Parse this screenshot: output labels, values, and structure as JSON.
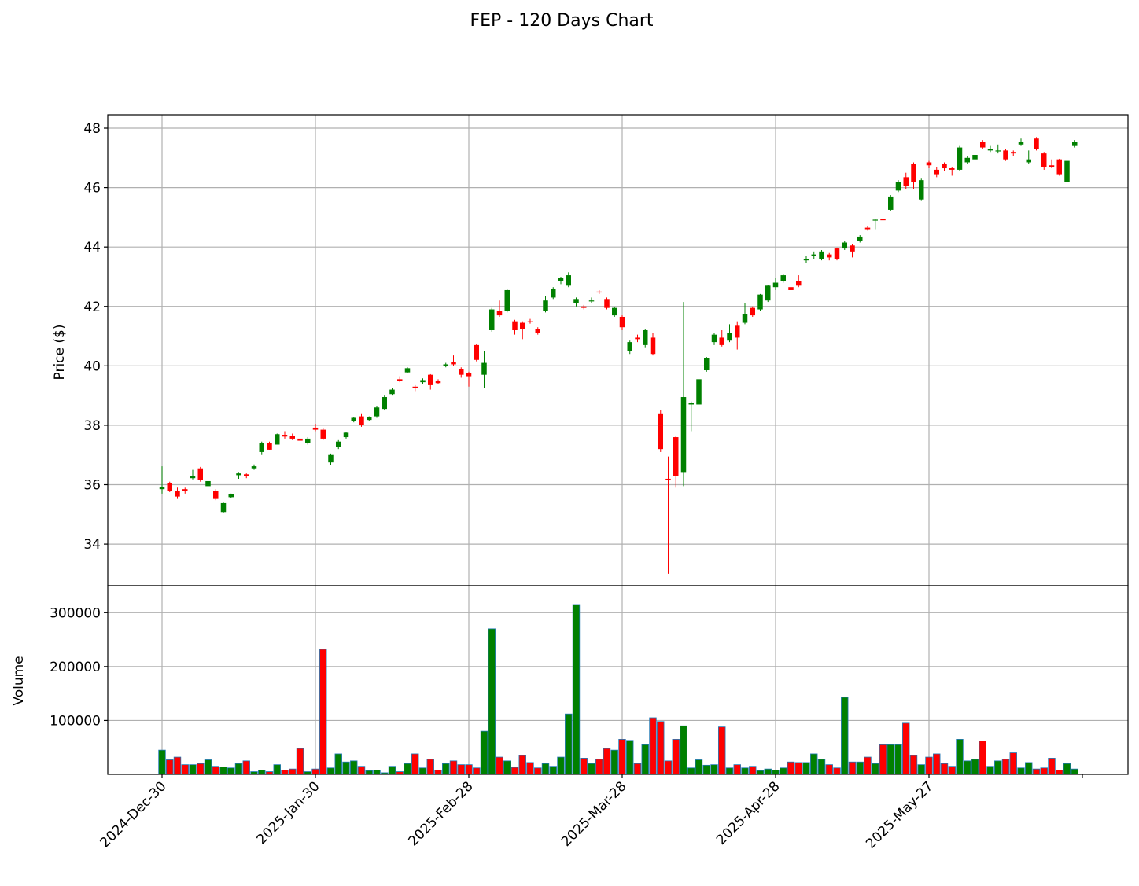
{
  "chart_data": {
    "type": "candlestick",
    "title": "FEP - 120 Days Chart",
    "price_panel": {
      "ylabel": "Price ($)",
      "ylim": [
        32.6,
        48.45
      ],
      "yticks": [
        34,
        36,
        38,
        40,
        42,
        44,
        46,
        48
      ],
      "grid": true
    },
    "volume_panel": {
      "ylabel": "Volume",
      "ylim": [
        0,
        350000
      ],
      "yticks": [
        100000,
        200000,
        300000
      ],
      "grid": true
    },
    "xtick_labels": [
      "2024-Dec-30",
      "2025-Jan-30",
      "2025-Feb-28",
      "2025-Mar-28",
      "2025-Apr-28",
      "2025-May-27"
    ],
    "xtick_index": [
      0,
      20,
      40,
      60,
      80,
      100
    ],
    "colors": {
      "up": "#008000",
      "down": "#ff0000",
      "volume_edge": "#1f77b4",
      "grid": "#b0b0b0"
    },
    "candles": [
      [
        35.85,
        35.92,
        35.7,
        36.62,
        45000
      ],
      [
        36.05,
        35.8,
        35.75,
        36.1,
        27000
      ],
      [
        35.8,
        35.6,
        35.52,
        35.9,
        32000
      ],
      [
        35.85,
        35.8,
        35.7,
        35.9,
        18000
      ],
      [
        36.22,
        36.28,
        36.18,
        36.5,
        18000
      ],
      [
        36.55,
        36.15,
        36.1,
        36.6,
        20000
      ],
      [
        35.95,
        36.12,
        35.9,
        36.15,
        27000
      ],
      [
        35.8,
        35.52,
        35.48,
        35.85,
        15000
      ],
      [
        35.08,
        35.38,
        35.05,
        35.4,
        14000
      ],
      [
        35.58,
        35.68,
        35.55,
        35.7,
        12000
      ],
      [
        36.32,
        36.38,
        36.2,
        36.4,
        20000
      ],
      [
        36.35,
        36.28,
        36.22,
        36.38,
        25000
      ],
      [
        36.55,
        36.62,
        36.5,
        36.68,
        5000
      ],
      [
        37.1,
        37.4,
        37.0,
        37.45,
        8000
      ],
      [
        37.4,
        37.18,
        37.15,
        37.45,
        5000
      ],
      [
        37.35,
        37.7,
        37.35,
        37.72,
        18000
      ],
      [
        37.68,
        37.62,
        37.55,
        37.8,
        8000
      ],
      [
        37.65,
        37.55,
        37.5,
        37.72,
        10000
      ],
      [
        37.55,
        37.48,
        37.4,
        37.62,
        48000
      ],
      [
        37.4,
        37.55,
        37.35,
        37.6,
        5000
      ],
      [
        37.92,
        37.85,
        37.8,
        38.05,
        10000
      ],
      [
        37.85,
        37.55,
        37.5,
        37.9,
        232000
      ],
      [
        36.75,
        37.0,
        36.65,
        37.05,
        12000
      ],
      [
        37.28,
        37.45,
        37.2,
        37.5,
        38000
      ],
      [
        37.6,
        37.75,
        37.55,
        37.78,
        23000
      ],
      [
        38.15,
        38.25,
        38.1,
        38.28,
        25000
      ],
      [
        38.3,
        38.0,
        37.95,
        38.4,
        15000
      ],
      [
        38.18,
        38.28,
        38.15,
        38.3,
        7000
      ],
      [
        38.3,
        38.6,
        38.25,
        38.65,
        8000
      ],
      [
        38.55,
        38.95,
        38.5,
        39.0,
        3000
      ],
      [
        39.05,
        39.2,
        39.0,
        39.25,
        15000
      ],
      [
        39.55,
        39.5,
        39.45,
        39.65,
        5000
      ],
      [
        39.78,
        39.92,
        39.75,
        39.95,
        20000
      ],
      [
        39.3,
        39.25,
        39.15,
        39.35,
        38000
      ],
      [
        39.45,
        39.52,
        39.4,
        39.58,
        12000
      ],
      [
        39.7,
        39.35,
        39.2,
        39.72,
        28000
      ],
      [
        39.5,
        39.42,
        39.38,
        39.55,
        8000
      ],
      [
        40.0,
        40.05,
        39.95,
        40.1,
        20000
      ],
      [
        40.12,
        40.05,
        40.0,
        40.35,
        25000
      ],
      [
        39.9,
        39.7,
        39.6,
        39.95,
        18000
      ],
      [
        39.75,
        39.65,
        39.3,
        39.8,
        18000
      ],
      [
        40.7,
        40.2,
        40.15,
        40.75,
        12000
      ],
      [
        39.7,
        40.1,
        39.25,
        40.5,
        80000
      ],
      [
        41.2,
        41.9,
        41.15,
        41.95,
        270000
      ],
      [
        41.85,
        41.7,
        41.65,
        42.2,
        32000
      ],
      [
        41.85,
        42.55,
        41.8,
        42.58,
        25000
      ],
      [
        41.5,
        41.2,
        41.05,
        41.55,
        13000
      ],
      [
        41.45,
        41.25,
        40.9,
        41.5,
        35000
      ],
      [
        41.5,
        41.48,
        41.42,
        41.58,
        22000
      ],
      [
        41.25,
        41.1,
        41.05,
        41.3,
        12000
      ],
      [
        41.85,
        42.2,
        41.8,
        42.35,
        20000
      ],
      [
        42.3,
        42.6,
        42.25,
        42.65,
        15000
      ],
      [
        42.85,
        42.95,
        42.75,
        43.0,
        32000
      ],
      [
        42.7,
        43.05,
        42.65,
        43.15,
        112000
      ],
      [
        42.1,
        42.25,
        42.0,
        42.3,
        315000
      ],
      [
        42.0,
        41.95,
        41.9,
        42.05,
        30000
      ],
      [
        42.18,
        42.2,
        42.1,
        42.3,
        20000
      ],
      [
        42.5,
        42.48,
        42.42,
        42.55,
        28000
      ],
      [
        42.25,
        41.95,
        41.9,
        42.3,
        48000
      ],
      [
        41.7,
        41.95,
        41.65,
        41.98,
        45000
      ],
      [
        41.65,
        41.3,
        41.2,
        41.7,
        65000
      ],
      [
        40.5,
        40.8,
        40.4,
        40.85,
        63000
      ],
      [
        40.95,
        40.9,
        40.8,
        41.05,
        20000
      ],
      [
        40.7,
        41.2,
        40.6,
        41.25,
        55000
      ],
      [
        40.95,
        40.4,
        40.35,
        41.1,
        105000
      ],
      [
        38.4,
        37.2,
        37.1,
        38.5,
        98000
      ],
      [
        36.2,
        36.15,
        33.0,
        36.95,
        25000
      ],
      [
        37.6,
        36.3,
        35.9,
        37.65,
        65000
      ],
      [
        36.4,
        38.95,
        35.95,
        42.15,
        90000
      ],
      [
        38.7,
        38.75,
        37.8,
        38.8,
        12000
      ],
      [
        38.7,
        39.55,
        38.65,
        39.65,
        27000
      ],
      [
        39.85,
        40.25,
        39.8,
        40.3,
        17000
      ],
      [
        40.8,
        41.05,
        40.7,
        41.1,
        18000
      ],
      [
        40.95,
        40.7,
        40.65,
        41.2,
        88000
      ],
      [
        40.85,
        41.1,
        40.8,
        41.4,
        12000
      ],
      [
        41.35,
        40.95,
        40.55,
        41.5,
        18000
      ],
      [
        41.45,
        41.75,
        41.4,
        42.1,
        12000
      ],
      [
        41.95,
        41.7,
        41.65,
        42.0,
        15000
      ],
      [
        41.9,
        42.4,
        41.85,
        42.42,
        7000
      ],
      [
        42.2,
        42.7,
        42.15,
        42.72,
        10000
      ],
      [
        42.65,
        42.8,
        42.55,
        42.95,
        8000
      ],
      [
        42.85,
        43.05,
        42.8,
        43.1,
        12000
      ],
      [
        42.65,
        42.55,
        42.45,
        42.7,
        23000
      ],
      [
        42.85,
        42.7,
        42.65,
        43.05,
        22000
      ],
      [
        43.55,
        43.6,
        43.45,
        43.7,
        22000
      ],
      [
        43.7,
        43.75,
        43.6,
        43.85,
        38000
      ],
      [
        43.6,
        43.85,
        43.55,
        43.9,
        28000
      ],
      [
        43.75,
        43.65,
        43.55,
        43.8,
        18000
      ],
      [
        43.95,
        43.6,
        43.55,
        43.98,
        12000
      ],
      [
        43.95,
        44.15,
        43.9,
        44.2,
        143000
      ],
      [
        44.05,
        43.85,
        43.65,
        44.1,
        23000
      ],
      [
        44.2,
        44.35,
        44.15,
        44.4,
        23000
      ],
      [
        44.65,
        44.6,
        44.55,
        44.7,
        32000
      ],
      [
        44.9,
        44.92,
        44.6,
        44.95,
        20000
      ],
      [
        44.95,
        44.9,
        44.7,
        45.0,
        55000
      ],
      [
        45.25,
        45.7,
        45.2,
        45.75,
        55000
      ],
      [
        45.9,
        46.2,
        45.85,
        46.25,
        55000
      ],
      [
        46.35,
        46.05,
        45.95,
        46.5,
        95000
      ],
      [
        46.8,
        46.2,
        45.95,
        46.85,
        35000
      ],
      [
        45.6,
        46.25,
        45.55,
        46.3,
        18000
      ],
      [
        46.85,
        46.75,
        46.65,
        46.9,
        32000
      ],
      [
        46.6,
        46.45,
        46.35,
        46.7,
        38000
      ],
      [
        46.8,
        46.65,
        46.55,
        46.85,
        20000
      ],
      [
        46.65,
        46.6,
        46.4,
        46.7,
        15000
      ],
      [
        46.6,
        47.35,
        46.55,
        47.4,
        65000
      ],
      [
        46.85,
        47.0,
        46.8,
        47.05,
        25000
      ],
      [
        46.95,
        47.1,
        46.9,
        47.3,
        28000
      ],
      [
        47.55,
        47.35,
        47.3,
        47.6,
        62000
      ],
      [
        47.25,
        47.3,
        47.2,
        47.4,
        15000
      ],
      [
        47.25,
        47.25,
        47.15,
        47.45,
        25000
      ],
      [
        47.25,
        46.95,
        46.9,
        47.3,
        28000
      ],
      [
        47.2,
        47.15,
        47.05,
        47.25,
        40000
      ],
      [
        47.45,
        47.55,
        47.4,
        47.65,
        12000
      ],
      [
        46.85,
        46.95,
        46.8,
        47.25,
        22000
      ],
      [
        47.65,
        47.3,
        47.25,
        47.7,
        10000
      ],
      [
        47.15,
        46.7,
        46.6,
        47.2,
        12000
      ],
      [
        46.75,
        46.7,
        46.65,
        46.95,
        30000
      ],
      [
        46.95,
        46.45,
        46.4,
        46.97,
        8000
      ],
      [
        46.2,
        46.9,
        46.15,
        46.95,
        20000
      ],
      [
        47.4,
        47.55,
        47.35,
        47.6,
        10000
      ]
    ]
  }
}
